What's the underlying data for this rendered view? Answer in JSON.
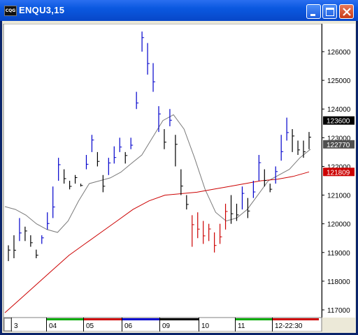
{
  "window": {
    "title": "ENQU3,15",
    "icon": "cqg-app-icon",
    "buttons": [
      "minimize-icon",
      "maximize-icon",
      "close-icon"
    ]
  },
  "colors": {
    "title_bar": "#0a58e0",
    "bar_default": "#000000",
    "bar_up": "#0000cc",
    "bar_down": "#cc0000",
    "ma_fast": "#7a7a7a",
    "ma_slow": "#cc0000",
    "price_tag_last": "#000000",
    "price_tag_ma_fast": "#505050",
    "price_tag_ma_slow": "#cc0000"
  },
  "chart_data": {
    "type": "ohlc-bar",
    "ylim": [
      116800,
      127000
    ],
    "y_ticks": [
      117000,
      118000,
      119000,
      120000,
      121000,
      122000,
      123000,
      124000,
      125000,
      126000
    ],
    "y_tick_labels": [
      "117000",
      "118000",
      "119000",
      "120000",
      "121000",
      "122000",
      "123000",
      "124000",
      "125000",
      "126000"
    ],
    "x_tick_labels": [
      "3",
      "04",
      "05",
      "06",
      "09",
      "10",
      "11",
      "12-22:30"
    ],
    "session_colors": [
      "#ffffff",
      "#00aa00",
      "#cc0000",
      "#0000cc",
      "#000000",
      "#ffffff",
      "#00aa00",
      "#cc0000"
    ],
    "price_tags": [
      {
        "label": "123600",
        "value": 123600,
        "kind": "last"
      },
      {
        "label": "122770",
        "value": 122770,
        "kind": "ma_fast"
      },
      {
        "label": "121809",
        "value": 121809,
        "kind": "ma_slow"
      }
    ],
    "bars": [
      [
        119250,
        118700
      ],
      [
        119600,
        118800
      ],
      [
        120200,
        119400
      ],
      [
        119900,
        119400
      ],
      [
        119600,
        119200
      ],
      [
        119100,
        118800
      ],
      [
        119600,
        119300
      ],
      [
        120400,
        119800
      ],
      [
        121300,
        120200
      ],
      [
        122300,
        121500
      ],
      [
        121900,
        121400
      ],
      [
        121500,
        121200
      ],
      [
        121700,
        121400
      ],
      [
        121400,
        121300
      ],
      [
        122400,
        121900
      ],
      [
        123100,
        122500
      ],
      [
        122500,
        122000
      ],
      [
        121700,
        121100
      ],
      [
        122300,
        121700
      ],
      [
        122700,
        122100
      ],
      [
        123000,
        122500
      ],
      [
        122500,
        122100
      ],
      [
        123000,
        122600
      ],
      [
        124600,
        124000
      ],
      [
        126700,
        126000
      ],
      [
        126300,
        125200
      ],
      [
        125600,
        124600
      ],
      [
        124100,
        123200
      ],
      [
        123300,
        122600
      ],
      [
        124000,
        123400
      ],
      [
        123100,
        122000
      ],
      [
        121900,
        121000
      ],
      [
        121000,
        120500
      ],
      [
        120300,
        119200
      ],
      [
        120400,
        119500
      ],
      [
        120100,
        119300
      ],
      [
        120000,
        119400
      ],
      [
        119700,
        119000
      ],
      [
        120000,
        119300
      ],
      [
        120700,
        119800
      ],
      [
        121000,
        120000
      ],
      [
        120700,
        120100
      ],
      [
        121300,
        120500
      ],
      [
        120900,
        120200
      ],
      [
        121500,
        120900
      ],
      [
        122400,
        121500
      ],
      [
        121900,
        121300
      ],
      [
        121400,
        121100
      ],
      [
        122000,
        121400
      ],
      [
        123100,
        122200
      ],
      [
        123700,
        122900
      ],
      [
        123300,
        122500
      ],
      [
        122900,
        122400
      ],
      [
        122900,
        122300
      ],
      [
        123200,
        122600
      ]
    ],
    "ma_fast": [
      120600,
      120500,
      120300,
      120000,
      119800,
      119700,
      120100,
      120800,
      121400,
      121500,
      121600,
      121800,
      122100,
      122400,
      123000,
      123600,
      123800,
      123300,
      122300,
      121200,
      120400,
      120100,
      120200,
      120500,
      121000,
      121500,
      121700,
      121900,
      122300,
      122600
    ],
    "ma_slow": [
      116900,
      117400,
      117900,
      118400,
      118900,
      119300,
      119700,
      120100,
      120500,
      120800,
      121000,
      121050,
      121100,
      121200,
      121300,
      121400,
      121500,
      121550,
      121650,
      121809
    ]
  }
}
